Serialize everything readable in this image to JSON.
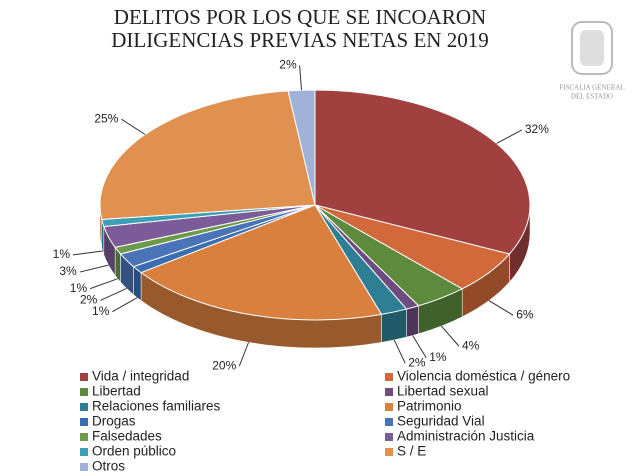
{
  "chart_data": {
    "type": "pie",
    "title_lines": [
      "DELITOS POR LOS QUE SE INCOARON",
      "DILIGENCIAS PREVIAS NETAS EN 2019"
    ],
    "logo_text": [
      "FISCALIA GENERAL",
      "DEL ESTADO"
    ],
    "categories": [
      "Vida / integridad",
      "Violencia doméstica / género",
      "Libertad",
      "Libertad sexual",
      "Relaciones familiares",
      "Patrimonio",
      "Drogas",
      "Seguridad Vial",
      "Falsedades",
      "Administración Justicia",
      "Orden público",
      "S / E",
      "Otros"
    ],
    "values": [
      32,
      6,
      4,
      1,
      2,
      20,
      1,
      2,
      1,
      3,
      1,
      25,
      2
    ],
    "value_labels": [
      "32%",
      "6%",
      "4%",
      "1%",
      "2%",
      "20%",
      "1%",
      "2%",
      "1%",
      "3%",
      "1%",
      "25%",
      "2%"
    ],
    "colors": [
      "#a0413f",
      "#d2693a",
      "#5d8a3c",
      "#6e4c7f",
      "#2e7f94",
      "#d9803f",
      "#3a6eb0",
      "#4a73b8",
      "#6a9a4a",
      "#7b5c98",
      "#3aa0b8",
      "#e0904f",
      "#9fb3d8"
    ],
    "legend": "bottom"
  }
}
